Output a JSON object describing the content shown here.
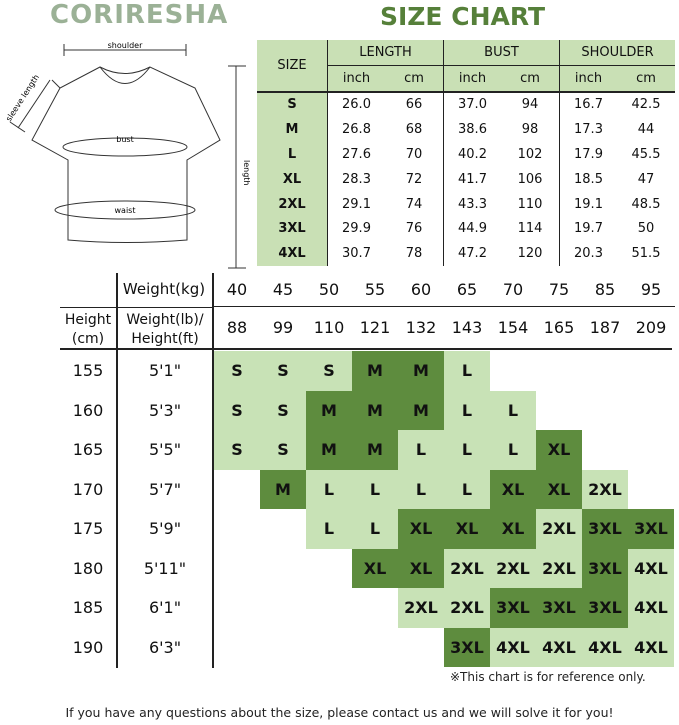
{
  "brand": "CORIRESHA",
  "title": "SIZE CHART",
  "diagram": {
    "shoulder": "shoulder",
    "sleeve": "sleeve length",
    "bust": "bust",
    "waist": "waist",
    "length": "length"
  },
  "measure_table": {
    "size_header": "SIZE",
    "groups": [
      "LENGTH",
      "BUST",
      "SHOULDER"
    ],
    "units": [
      "inch",
      "cm",
      "inch",
      "cm",
      "inch",
      "cm"
    ],
    "rows": [
      [
        "S",
        "26.0",
        "66",
        "37.0",
        "94",
        "16.7",
        "42.5"
      ],
      [
        "M",
        "26.8",
        "68",
        "38.6",
        "98",
        "17.3",
        "44"
      ],
      [
        "L",
        "27.6",
        "70",
        "40.2",
        "102",
        "17.9",
        "45.5"
      ],
      [
        "XL",
        "28.3",
        "72",
        "41.7",
        "106",
        "18.5",
        "47"
      ],
      [
        "2XL",
        "29.1",
        "74",
        "43.3",
        "110",
        "19.1",
        "48.5"
      ],
      [
        "3XL",
        "29.9",
        "76",
        "44.9",
        "114",
        "19.7",
        "50"
      ],
      [
        "4XL",
        "30.7",
        "78",
        "47.2",
        "120",
        "20.3",
        "51.5"
      ]
    ]
  },
  "fit_chart": {
    "weight_kg_label": "Weight(kg)",
    "height_cm_label": "Height (cm)",
    "weight_lb_label": "Weight(lb)/ Height(ft)",
    "weights_kg": [
      "40",
      "45",
      "50",
      "55",
      "60",
      "65",
      "70",
      "75",
      "85",
      "95"
    ],
    "weights_lb": [
      "88",
      "99",
      "110",
      "121",
      "132",
      "143",
      "154",
      "165",
      "187",
      "209"
    ],
    "heights_cm": [
      "155",
      "160",
      "165",
      "170",
      "175",
      "180",
      "185",
      "190"
    ],
    "heights_ft": [
      "5'1\"",
      "5'3\"",
      "5'5\"",
      "5'7\"",
      "5'9\"",
      "5'11\"",
      "6'1\"",
      "6'3\""
    ],
    "colors": {
      "light": "#c8e2b6",
      "dark": "#5e8c3e"
    },
    "grid": [
      [
        "S:L",
        "S:L",
        "S:L",
        "M:D",
        "M:D",
        "L:L",
        "",
        "",
        "",
        ""
      ],
      [
        "S:L",
        "S:L",
        "M:D",
        "M:D",
        "M:D",
        "L:L",
        "L:L",
        "",
        "",
        ""
      ],
      [
        "S:L",
        "S:L",
        "M:D",
        "M:D",
        "L:L",
        "L:L",
        "L:L",
        "XL:D",
        "",
        ""
      ],
      [
        "",
        "M:D",
        "L:L",
        "L:L",
        "L:L",
        "L:L",
        "XL:D",
        "XL:D",
        "2XL:L",
        ""
      ],
      [
        "",
        "",
        "L:L",
        "L:L",
        "XL:D",
        "XL:D",
        "XL:D",
        "2XL:L",
        "3XL:D",
        "3XL:D"
      ],
      [
        "",
        "",
        "",
        "XL:D",
        "XL:D",
        "2XL:L",
        "2XL:L",
        "2XL:L",
        "3XL:D",
        "4XL:L"
      ],
      [
        "",
        "",
        "",
        "",
        "2XL:L",
        "2XL:L",
        "3XL:D",
        "3XL:D",
        "3XL:D",
        "4XL:L"
      ],
      [
        "",
        "",
        "",
        "",
        "",
        "3XL:D",
        "4XL:L",
        "4XL:L",
        "4XL:L",
        "4XL:L"
      ]
    ],
    "note": "※This chart is for reference only."
  },
  "footer": "If you have any questions about the size, please contact us and we will solve it for you!"
}
